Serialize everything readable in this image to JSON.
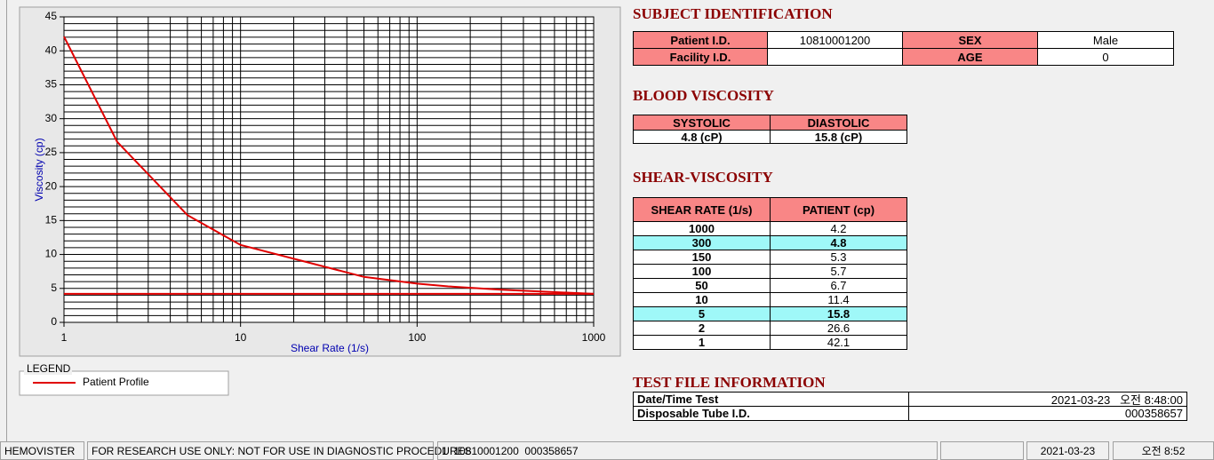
{
  "chart_data": {
    "type": "line",
    "x_label": "Shear Rate (1/s)",
    "y_label": "Viscosity (cp)",
    "xscale": "log",
    "xlim": [
      1,
      1000
    ],
    "xticks": [
      1,
      10,
      100,
      1000
    ],
    "ylim": [
      0,
      45
    ],
    "yticks": [
      0,
      5,
      10,
      15,
      20,
      25,
      30,
      35,
      40,
      45
    ],
    "grid": true,
    "minor_grid": true,
    "series": [
      {
        "name": "Patient Profile",
        "color": "#e00000",
        "x": [
          1,
          2,
          5,
          10,
          50,
          100,
          150,
          300,
          1000
        ],
        "values": [
          42.1,
          26.6,
          15.8,
          11.4,
          6.7,
          5.7,
          5.3,
          4.8,
          4.2
        ]
      },
      {
        "color": "#e00000",
        "x": [
          1,
          1000
        ],
        "values": [
          4.2,
          4.2
        ]
      }
    ]
  },
  "legend": {
    "title": "LEGEND"
  },
  "subject_identification": {
    "title": "SUBJECT IDENTIFICATION",
    "rows": [
      [
        "Patient I.D.",
        "10810001200",
        "SEX",
        "Male"
      ],
      [
        "Facility I.D.",
        null,
        "AGE",
        0
      ]
    ]
  },
  "blood_viscosity": {
    "title": "BLOOD VISCOSITY",
    "headers": [
      "SYSTOLIC",
      "DIASTOLIC"
    ],
    "values": [
      "4.8 (cP)",
      "15.8 (cP)"
    ]
  },
  "shear_viscosity": {
    "title": "SHEAR-VISCOSITY",
    "headers": [
      "SHEAR RATE (1/s)",
      "PATIENT (cp)"
    ],
    "rows": [
      {
        "cells": [
          1000,
          4.2
        ],
        "highlight": false
      },
      {
        "cells": [
          300,
          4.8
        ],
        "highlight": true
      },
      {
        "cells": [
          150,
          5.3
        ],
        "highlight": false
      },
      {
        "cells": [
          100,
          5.7
        ],
        "highlight": false
      },
      {
        "cells": [
          50,
          6.7
        ],
        "highlight": false
      },
      {
        "cells": [
          10,
          11.4
        ],
        "highlight": false
      },
      {
        "cells": [
          5,
          15.8
        ],
        "highlight": true
      },
      {
        "cells": [
          2,
          26.6
        ],
        "highlight": false
      },
      {
        "cells": [
          1,
          42.1
        ],
        "highlight": false
      }
    ]
  },
  "test_file": {
    "title": "TEST FILE INFORMATION",
    "rows": [
      [
        "Date/Time Test",
        "2021-03-23   오전 8:48:00"
      ],
      [
        "Disposable Tube I.D.",
        "000358657"
      ]
    ]
  },
  "status_bar": [
    "HEMOVISTER",
    "FOR RESEARCH USE ONLY: NOT FOR USE IN DIAGNOSTIC PROCEDURES",
    "1  10810001200  000358657",
    "2021-03-23",
    "오전 8:52"
  ]
}
